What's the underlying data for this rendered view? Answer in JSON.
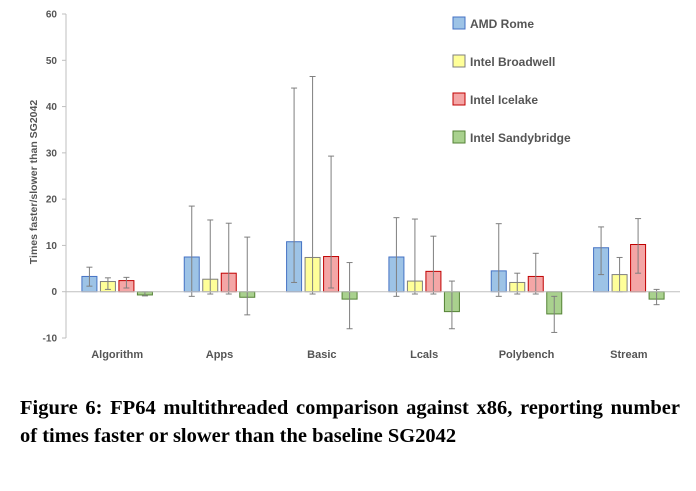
{
  "chart_data": {
    "type": "bar",
    "title": "",
    "xlabel": "",
    "ylabel": "Times faster/slower than SG2042",
    "ylim": [
      -10,
      60
    ],
    "yticks": [
      -10,
      0,
      10,
      20,
      30,
      40,
      50,
      60
    ],
    "grid": false,
    "legend_position": "top-right",
    "categories": [
      "Algorithm",
      "Apps",
      "Basic",
      "Lcals",
      "Polybench",
      "Stream"
    ],
    "series": [
      {
        "name": "AMD Rome",
        "color": "#9dc3e6",
        "stroke": "#4472c4",
        "values": [
          3.3,
          7.5,
          10.8,
          7.5,
          4.5,
          9.5
        ],
        "err_low": [
          1.2,
          -1.0,
          2.0,
          -1.0,
          -1.0,
          3.7
        ],
        "err_high": [
          5.3,
          18.5,
          44.0,
          16.0,
          14.7,
          14.0
        ]
      },
      {
        "name": "Intel Broadwell",
        "color": "#ffff99",
        "stroke": "#7f7f7f",
        "values": [
          2.2,
          2.7,
          7.4,
          2.3,
          2.0,
          3.7
        ],
        "err_low": [
          0.5,
          -0.5,
          -0.5,
          -0.5,
          -0.5,
          0.0
        ],
        "err_high": [
          3.0,
          15.5,
          46.5,
          15.7,
          4.0,
          7.4
        ]
      },
      {
        "name": "Intel Icelake",
        "color": "#f4a6a6",
        "stroke": "#c00000",
        "values": [
          2.4,
          4.0,
          7.6,
          4.4,
          3.3,
          10.2
        ],
        "err_low": [
          0.8,
          -0.5,
          0.8,
          -0.5,
          -0.5,
          4.0
        ],
        "err_high": [
          3.1,
          14.8,
          29.3,
          12.0,
          8.3,
          15.8
        ]
      },
      {
        "name": "Intel Sandybridge",
        "color": "#a9d18e",
        "stroke": "#548235",
        "values": [
          -0.7,
          -1.2,
          -1.6,
          -4.3,
          -4.8,
          -1.6
        ],
        "err_low": [
          -0.9,
          -5.0,
          -8.0,
          -8.0,
          -8.8,
          -2.8
        ],
        "err_high": [
          0.0,
          11.8,
          6.3,
          2.3,
          -1.0,
          0.5
        ]
      }
    ]
  },
  "caption": "Figure 6: FP64 multithreaded comparison against x86, reporting number of times faster or slower than the baseline SG2042"
}
